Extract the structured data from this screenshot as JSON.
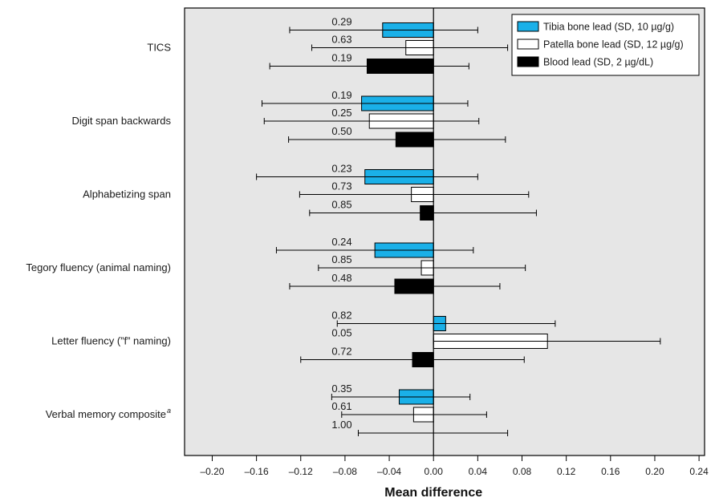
{
  "chart_data": {
    "type": "bar",
    "orientation": "horizontal",
    "xlabel": "Mean difference",
    "xlim": [
      -0.225,
      0.245
    ],
    "xticks": [
      -0.2,
      -0.16,
      -0.12,
      -0.08,
      -0.04,
      0.0,
      0.04,
      0.08,
      0.12,
      0.16,
      0.2,
      0.24
    ],
    "xtick_labels": [
      "–0.20",
      "–0.16",
      "–0.12",
      "–0.08",
      "–0.04",
      "0.00",
      "0.04",
      "0.08",
      "0.12",
      "0.16",
      "0.20",
      "0.24"
    ],
    "grid": false,
    "legend_position": "top-right",
    "colors": {
      "tibia": "#1ab0e8",
      "patella": "#ffffff",
      "blood": "#000000",
      "plot_bg": "#e6e6e6"
    },
    "series": [
      {
        "key": "tibia",
        "name": "Tibia bone lead (SD, 10 µg/g)"
      },
      {
        "key": "patella",
        "name": "Patella bone lead (SD, 12 µg/g)"
      },
      {
        "key": "blood",
        "name": "Blood lead (SD, 2 µg/dL)"
      }
    ],
    "categories": [
      {
        "label": "TICS",
        "superscript": "",
        "bars": [
          {
            "series": "tibia",
            "value": -0.046,
            "ci": [
              -0.13,
              0.04
            ],
            "p": "0.29"
          },
          {
            "series": "patella",
            "value": -0.025,
            "ci": [
              -0.11,
              0.067
            ],
            "p": "0.63"
          },
          {
            "series": "blood",
            "value": -0.06,
            "ci": [
              -0.148,
              0.032
            ],
            "p": "0.19"
          }
        ]
      },
      {
        "label": "Digit span backwards",
        "superscript": "",
        "bars": [
          {
            "series": "tibia",
            "value": -0.065,
            "ci": [
              -0.155,
              0.031
            ],
            "p": "0.19"
          },
          {
            "series": "patella",
            "value": -0.058,
            "ci": [
              -0.153,
              0.041
            ],
            "p": "0.25"
          },
          {
            "series": "blood",
            "value": -0.034,
            "ci": [
              -0.131,
              0.065
            ],
            "p": "0.50"
          }
        ]
      },
      {
        "label": "Alphabetizing span",
        "superscript": "",
        "bars": [
          {
            "series": "tibia",
            "value": -0.062,
            "ci": [
              -0.16,
              0.04
            ],
            "p": "0.23"
          },
          {
            "series": "patella",
            "value": -0.02,
            "ci": [
              -0.121,
              0.086
            ],
            "p": "0.73"
          },
          {
            "series": "blood",
            "value": -0.012,
            "ci": [
              -0.112,
              0.093
            ],
            "p": "0.85"
          }
        ]
      },
      {
        "label": "Tegory fluency (animal naming)",
        "superscript": "",
        "bars": [
          {
            "series": "tibia",
            "value": -0.053,
            "ci": [
              -0.142,
              0.036
            ],
            "p": "0.24"
          },
          {
            "series": "patella",
            "value": -0.011,
            "ci": [
              -0.104,
              0.083
            ],
            "p": "0.85"
          },
          {
            "series": "blood",
            "value": -0.035,
            "ci": [
              -0.13,
              0.06
            ],
            "p": "0.48"
          }
        ]
      },
      {
        "label": "Letter fluency (”f” naming)",
        "superscript": "",
        "bars": [
          {
            "series": "tibia",
            "value": 0.011,
            "ci": [
              -0.087,
              0.11
            ],
            "p": "0.82"
          },
          {
            "series": "patella",
            "value": 0.103,
            "ci": [
              0.0,
              0.205
            ],
            "p": "0.05"
          },
          {
            "series": "blood",
            "value": -0.019,
            "ci": [
              -0.12,
              0.082
            ],
            "p": "0.72"
          }
        ]
      },
      {
        "label": "Verbal memory composite",
        "superscript": "a",
        "bars": [
          {
            "series": "tibia",
            "value": -0.031,
            "ci": [
              -0.092,
              0.033
            ],
            "p": "0.35"
          },
          {
            "series": "patella",
            "value": -0.018,
            "ci": [
              -0.083,
              0.048
            ],
            "p": "0.61"
          },
          {
            "series": "blood",
            "value": 0.0,
            "ci": [
              -0.068,
              0.067
            ],
            "p": "1.00"
          }
        ]
      }
    ]
  }
}
